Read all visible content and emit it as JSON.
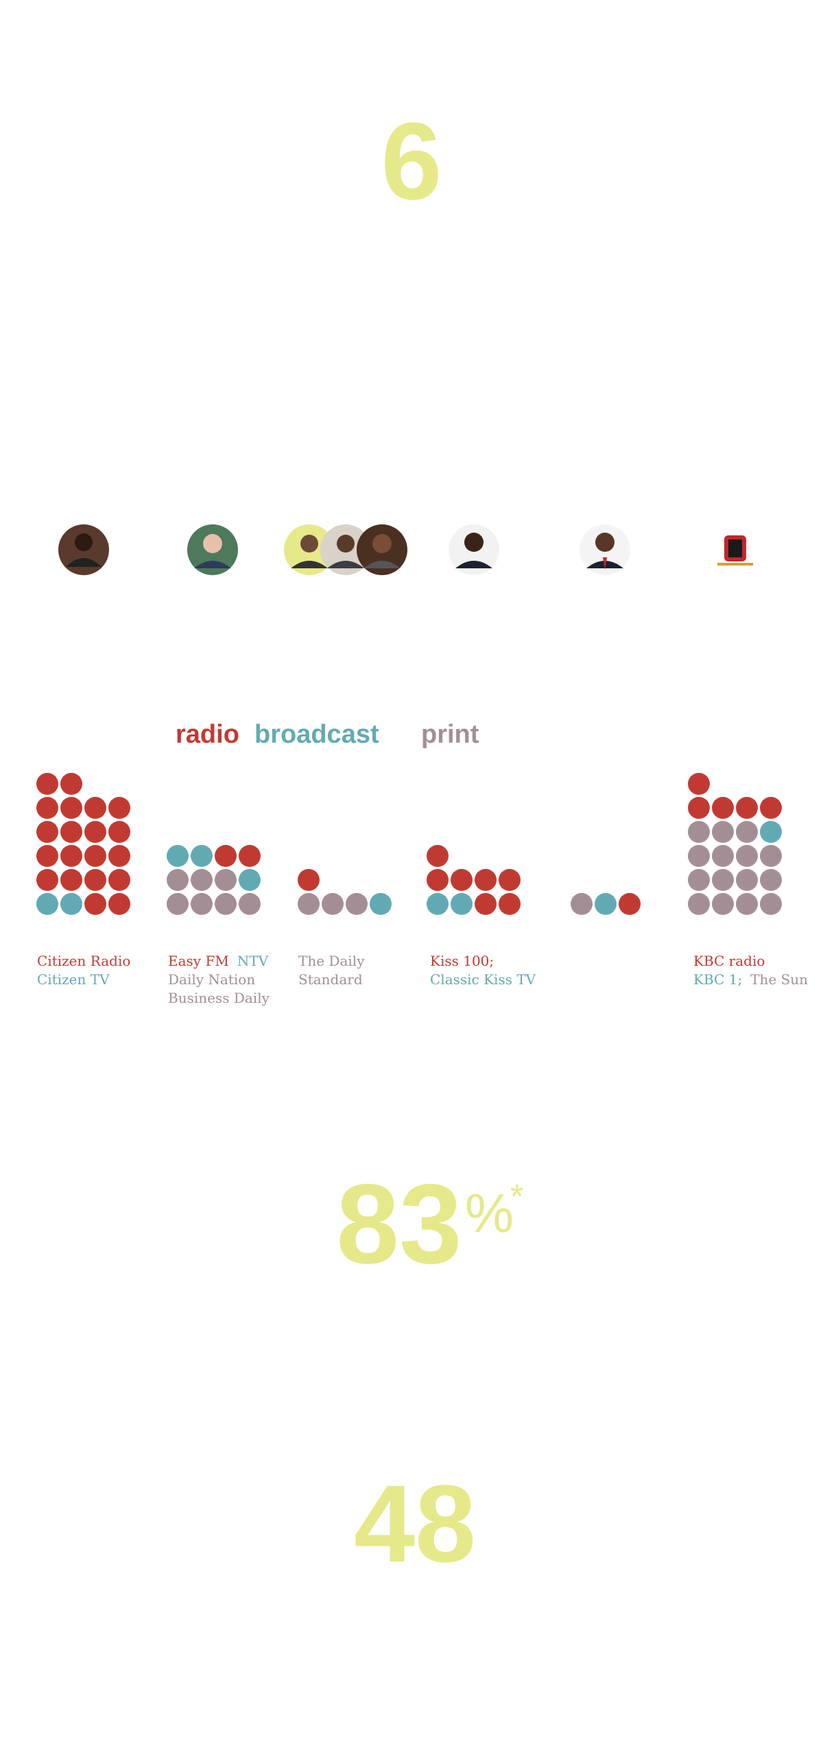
{
  "stats": {
    "first": "6",
    "second": "83",
    "second_unit": "%",
    "second_note": "*",
    "third": "48"
  },
  "legend": {
    "radio": "radio",
    "broadcast": "broadcast",
    "print": "print"
  },
  "owners": [
    {
      "radio": 20,
      "broadcast": 2,
      "print": 0,
      "labels": [
        [
          {
            "text": "Citizen Radio",
            "kind": "radio"
          }
        ],
        [
          {
            "text": "Citizen TV",
            "kind": "broadcast"
          }
        ]
      ]
    },
    {
      "radio": 2,
      "broadcast": 3,
      "print": 7,
      "labels": [
        [
          {
            "text": "Easy FM",
            "kind": "radio"
          },
          {
            "text": "NTV",
            "kind": "broadcast"
          }
        ],
        [
          {
            "text": "Daily Nation",
            "kind": "print"
          }
        ],
        [
          {
            "text": "Business Daily",
            "kind": "print"
          }
        ]
      ]
    },
    {
      "radio": 1,
      "broadcast": 1,
      "print": 3,
      "labels": [
        [
          {
            "text": "The Daily",
            "kind": "print"
          }
        ],
        [
          {
            "text": "Standard",
            "kind": "print"
          }
        ]
      ]
    },
    {
      "radio": 7,
      "broadcast": 2,
      "print": 0,
      "labels": [
        [
          {
            "text": "Kiss 100;",
            "kind": "radio"
          }
        ],
        [
          {
            "text": "Classic Kiss TV",
            "kind": "broadcast"
          }
        ]
      ]
    },
    {
      "radio": 1,
      "broadcast": 1,
      "print": 1,
      "labels": []
    },
    {
      "radio": 5,
      "broadcast": 1,
      "print": 15,
      "labels": [
        [
          {
            "text": "KBC radio",
            "kind": "radio"
          }
        ],
        [
          {
            "text": "KBC 1;",
            "kind": "broadcast"
          },
          {
            "text": "The Sun",
            "kind": "print"
          }
        ]
      ]
    }
  ]
}
